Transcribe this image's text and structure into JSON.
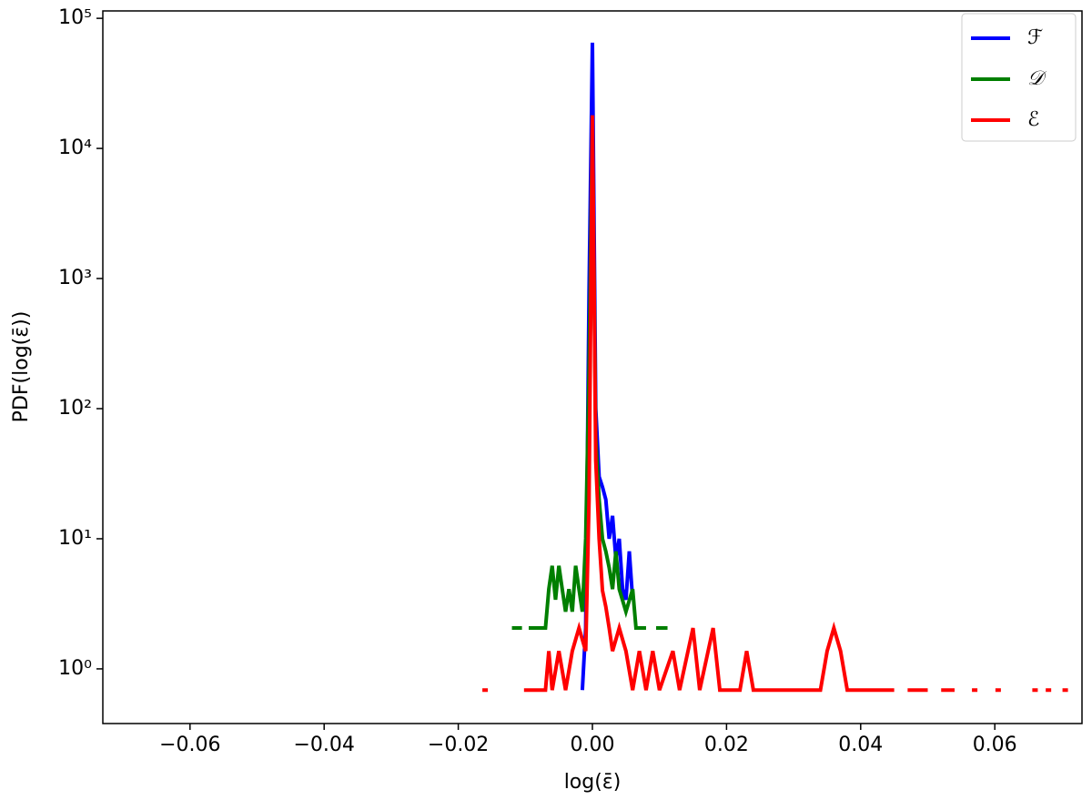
{
  "chart_data": {
    "type": "line",
    "xlabel": "log(ε̄)",
    "ylabel": "PDF(log(ε̄))",
    "xlim": [
      -0.073,
      0.073
    ],
    "ylim": [
      0.38,
      114000
    ],
    "yscale": "log",
    "xticks": [
      {
        "value": -0.06,
        "label": "−0.06"
      },
      {
        "value": -0.04,
        "label": "−0.04"
      },
      {
        "value": -0.02,
        "label": "−0.02"
      },
      {
        "value": 0,
        "label": "0.00"
      },
      0.02,
      0.04,
      0.06
    ],
    "yticks": [
      {
        "value": 1,
        "label": "10⁰"
      },
      {
        "value": 10,
        "label": "10¹"
      },
      {
        "value": 100,
        "label": "10²"
      },
      {
        "value": 1000,
        "label": "10³"
      },
      {
        "value": 10000,
        "label": "10⁴"
      },
      {
        "value": 100000,
        "label": "10⁵"
      }
    ],
    "legend": "upper right",
    "series": [
      {
        "name": "ℱ",
        "color": "#0000ff",
        "x": [
          -0.0015,
          -0.001,
          -0.0005,
          0,
          0.0005,
          0.001,
          0.0015,
          0.002,
          0.0025,
          0.003,
          0.0035,
          0.004,
          0.0045,
          0.005,
          0.0055,
          0.006
        ],
        "values": [
          0.687,
          2.06,
          800,
          65000,
          100,
          30,
          25,
          20,
          10,
          15,
          7,
          10,
          4.1,
          3.4,
          8,
          3.4
        ]
      },
      {
        "name": "𝒟",
        "color": "#007f00",
        "x": [
          -0.012,
          -0.0105,
          null,
          -0.0095,
          -0.008,
          -0.007,
          -0.0065,
          -0.006,
          -0.0055,
          -0.005,
          -0.0045,
          -0.004,
          -0.0035,
          -0.003,
          -0.0025,
          -0.002,
          -0.0015,
          -0.001,
          -0.0005,
          0,
          0.0005,
          0.001,
          0.0015,
          0.002,
          0.0025,
          0.003,
          0.0035,
          0.004,
          0.005,
          0.006,
          0.0065,
          0.008,
          null,
          0.0095,
          0.0112
        ],
        "values": [
          2.06,
          2.06,
          null,
          2.06,
          2.06,
          2.06,
          4.1,
          6.2,
          3.4,
          6.2,
          4.1,
          2.75,
          4.1,
          2.75,
          6.2,
          4.1,
          2.75,
          10,
          200,
          15000,
          60,
          20,
          10,
          8,
          6,
          4.1,
          8,
          4.1,
          2.75,
          4.1,
          2.06,
          2.06,
          null,
          2.06,
          2.06
        ]
      },
      {
        "name": "ℰ",
        "color": "#ff0000",
        "x": [
          -0.016,
          null,
          -0.0102,
          -0.007,
          -0.0065,
          -0.006,
          -0.005,
          -0.004,
          -0.003,
          -0.002,
          -0.001,
          -0.0005,
          0,
          0.0005,
          0.001,
          0.0015,
          0.002,
          0.0025,
          0.003,
          0.004,
          0.005,
          0.006,
          0.007,
          0.008,
          0.009,
          0.01,
          0.012,
          0.013,
          0.015,
          0.016,
          0.018,
          0.019,
          0.022,
          0.023,
          0.024,
          0.034,
          0.035,
          0.036,
          0.037,
          0.038,
          0.045,
          null,
          0.047,
          0.05,
          null,
          0.052,
          0.054,
          null,
          0.057,
          null,
          0.0605,
          null,
          0.066,
          null,
          0.068,
          null,
          0.0705
        ],
        "values": [
          0.687,
          null,
          0.687,
          0.687,
          1.37,
          0.687,
          1.37,
          0.687,
          1.37,
          2.06,
          1.37,
          20,
          18000,
          40,
          10,
          4,
          3,
          2.06,
          1.37,
          2.06,
          1.37,
          0.687,
          1.37,
          0.687,
          1.37,
          0.687,
          1.37,
          0.687,
          2.06,
          0.687,
          2.06,
          0.687,
          0.687,
          1.37,
          0.687,
          0.687,
          1.37,
          2.06,
          1.37,
          0.687,
          0.687,
          null,
          0.687,
          0.687,
          null,
          0.687,
          0.687,
          null,
          0.687,
          null,
          0.687,
          null,
          0.687,
          null,
          0.687,
          null,
          0.687
        ]
      }
    ]
  }
}
